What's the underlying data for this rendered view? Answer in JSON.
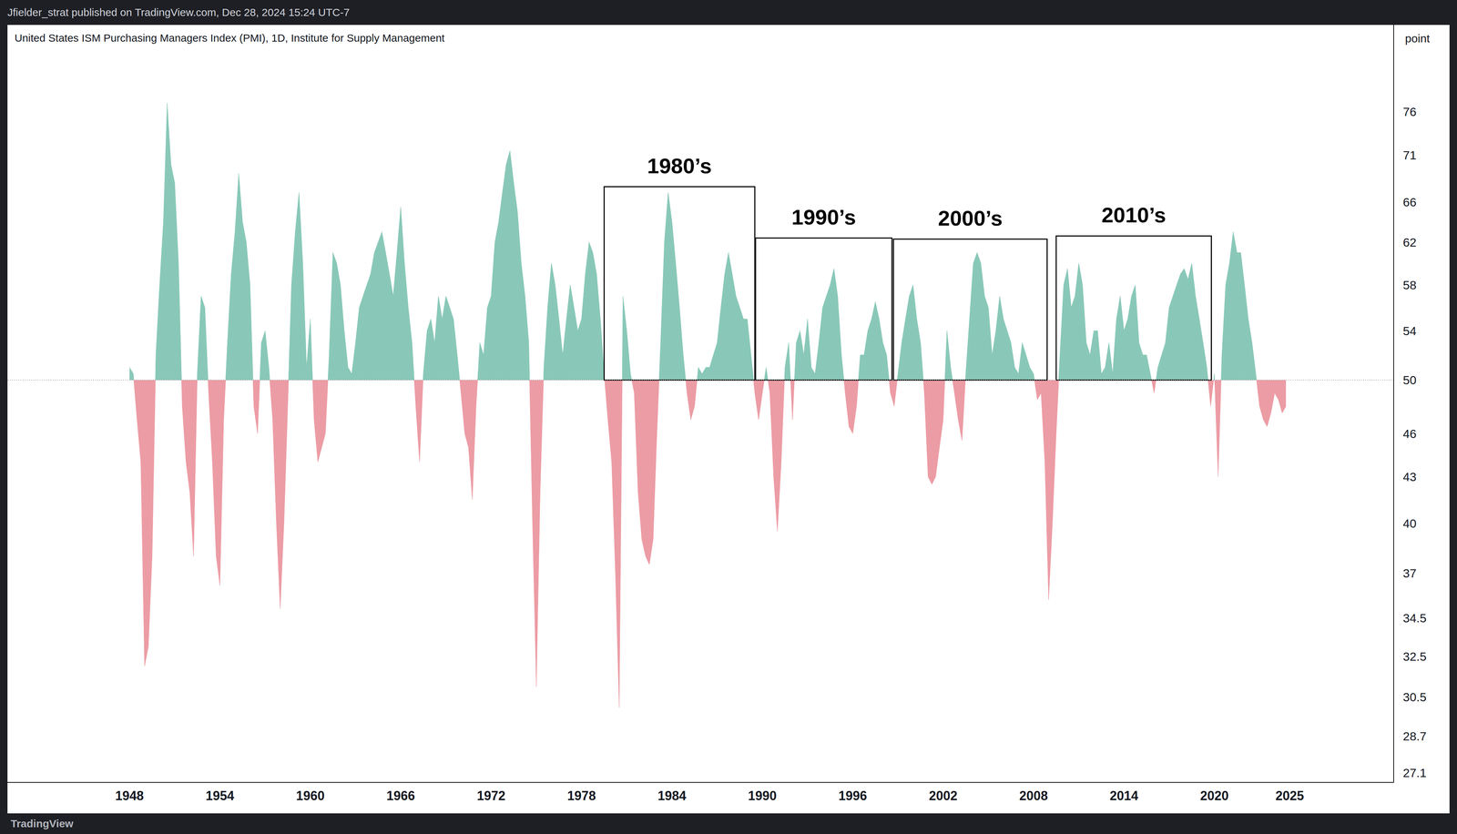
{
  "header": "Jfielder_strat published on TradingView.com, Dec 28, 2024 15:24 UTC-7",
  "footer": "TradingView",
  "chart_data": {
    "type": "area",
    "title": "United States ISM Purchasing Managers Index (PMI), 1D, Institute for Supply Management",
    "y_unit_label": "point",
    "log": "y",
    "grid": false,
    "colors": [
      "#89c8b8",
      "#ec9ca5"
    ],
    "baseline": 50,
    "xlim": [
      1939.9,
      2031.9
    ],
    "xticks": [
      1948,
      1954,
      1960,
      1966,
      1972,
      1978,
      1984,
      1990,
      1996,
      2002,
      2008,
      2014,
      2020,
      2025
    ],
    "ylim": [
      26.7,
      87
    ],
    "yticks": [
      27.1,
      28.7,
      30.5,
      32.5,
      34.5,
      37,
      40,
      43,
      46,
      50,
      54,
      58,
      62,
      66,
      71,
      76
    ],
    "annotations": [
      {
        "text": "1980’s",
        "x": [
          1979.5,
          1989.5
        ],
        "y": [
          50,
          67.6
        ]
      },
      {
        "text": "1990’s",
        "x": [
          1989.55,
          1998.6
        ],
        "y": [
          50,
          62.4
        ]
      },
      {
        "text": "2000’s",
        "x": [
          1998.7,
          2008.9
        ],
        "y": [
          50,
          62.3
        ]
      },
      {
        "text": "2010’s",
        "x": [
          2009.5,
          2019.8
        ],
        "y": [
          50,
          62.6
        ]
      }
    ],
    "x": [
      1948,
      1948.25,
      1948.5,
      1948.75,
      1949,
      1949.25,
      1949.5,
      1949.75,
      1950,
      1950.25,
      1950.5,
      1950.75,
      1951,
      1951.25,
      1951.5,
      1951.75,
      1952,
      1952.25,
      1952.5,
      1952.75,
      1953,
      1953.25,
      1953.5,
      1953.75,
      1954,
      1954.25,
      1954.5,
      1954.75,
      1955,
      1955.25,
      1955.5,
      1955.75,
      1956,
      1956.25,
      1956.5,
      1956.75,
      1957,
      1957.25,
      1957.5,
      1957.75,
      1958,
      1958.25,
      1958.5,
      1958.75,
      1959,
      1959.25,
      1959.5,
      1959.75,
      1960,
      1960.25,
      1960.5,
      1960.75,
      1961,
      1961.25,
      1961.5,
      1961.75,
      1962,
      1962.25,
      1962.5,
      1962.75,
      1963,
      1963.25,
      1963.5,
      1963.75,
      1964,
      1964.25,
      1964.5,
      1964.75,
      1965,
      1965.25,
      1965.5,
      1965.75,
      1966,
      1966.25,
      1966.5,
      1966.75,
      1967,
      1967.25,
      1967.5,
      1967.75,
      1968,
      1968.25,
      1968.5,
      1968.75,
      1969,
      1969.25,
      1969.5,
      1969.75,
      1970,
      1970.25,
      1970.5,
      1970.75,
      1971,
      1971.25,
      1971.5,
      1971.75,
      1972,
      1972.25,
      1972.5,
      1972.75,
      1973,
      1973.25,
      1973.5,
      1973.75,
      1974,
      1974.25,
      1974.5,
      1974.75,
      1975,
      1975.25,
      1975.5,
      1975.75,
      1976,
      1976.25,
      1976.5,
      1976.75,
      1977,
      1977.25,
      1977.5,
      1977.75,
      1978,
      1978.25,
      1978.5,
      1978.75,
      1979,
      1979.25,
      1979.5,
      1979.75,
      1980,
      1980.25,
      1980.5,
      1980.75,
      1981,
      1981.25,
      1981.5,
      1981.75,
      1982,
      1982.25,
      1982.5,
      1982.75,
      1983,
      1983.25,
      1983.5,
      1983.75,
      1984,
      1984.25,
      1984.5,
      1984.75,
      1985,
      1985.25,
      1985.5,
      1985.75,
      1986,
      1986.25,
      1986.5,
      1986.75,
      1987,
      1987.25,
      1987.5,
      1987.75,
      1988,
      1988.25,
      1988.5,
      1988.75,
      1989,
      1989.25,
      1989.5,
      1989.75,
      1990,
      1990.25,
      1990.5,
      1990.75,
      1991,
      1991.25,
      1991.5,
      1991.75,
      1992,
      1992.25,
      1992.5,
      1992.75,
      1993,
      1993.25,
      1993.5,
      1993.75,
      1994,
      1994.25,
      1994.5,
      1994.75,
      1995,
      1995.25,
      1995.5,
      1995.75,
      1996,
      1996.25,
      1996.5,
      1996.75,
      1997,
      1997.25,
      1997.5,
      1997.75,
      1998,
      1998.25,
      1998.5,
      1998.75,
      1999,
      1999.25,
      1999.5,
      1999.75,
      2000,
      2000.25,
      2000.5,
      2000.75,
      2001,
      2001.25,
      2001.5,
      2001.75,
      2002,
      2002.25,
      2002.5,
      2002.75,
      2003,
      2003.25,
      2003.5,
      2003.75,
      2004,
      2004.25,
      2004.5,
      2004.75,
      2005,
      2005.25,
      2005.5,
      2005.75,
      2006,
      2006.25,
      2006.5,
      2006.75,
      2007,
      2007.25,
      2007.5,
      2007.75,
      2008,
      2008.25,
      2008.5,
      2008.75,
      2009,
      2009.25,
      2009.5,
      2009.75,
      2010,
      2010.25,
      2010.5,
      2010.75,
      2011,
      2011.25,
      2011.5,
      2011.75,
      2012,
      2012.25,
      2012.5,
      2012.75,
      2013,
      2013.25,
      2013.5,
      2013.75,
      2014,
      2014.25,
      2014.5,
      2014.75,
      2015,
      2015.25,
      2015.5,
      2015.75,
      2016,
      2016.25,
      2016.5,
      2016.75,
      2017,
      2017.25,
      2017.5,
      2017.75,
      2018,
      2018.25,
      2018.5,
      2018.75,
      2019,
      2019.25,
      2019.5,
      2019.75,
      2020,
      2020.25,
      2020.5,
      2020.75,
      2021,
      2021.25,
      2021.5,
      2021.75,
      2022,
      2022.25,
      2022.5,
      2022.75,
      2023,
      2023.25,
      2023.5,
      2023.75,
      2024,
      2024.25,
      2024.5,
      2024.75
    ],
    "values": [
      51,
      50.5,
      47,
      44,
      32,
      33,
      38,
      52,
      58,
      64,
      77,
      70,
      68,
      60,
      48,
      44,
      42,
      38,
      50.5,
      57,
      56,
      49,
      44,
      38,
      36.3,
      47,
      53,
      59,
      63,
      69,
      64,
      62,
      58,
      48,
      46,
      53,
      54,
      51,
      47,
      40,
      35,
      40,
      48,
      58,
      63,
      67,
      60,
      51,
      55,
      47,
      44,
      45,
      46,
      52,
      61,
      60,
      58,
      54,
      51,
      50.5,
      53,
      56,
      57,
      58,
      59,
      61,
      62,
      63,
      61,
      59,
      57,
      61,
      65.5,
      60,
      56,
      53,
      48,
      44,
      50.5,
      54,
      55,
      53,
      57,
      55,
      57,
      56,
      55,
      52,
      49,
      46,
      45,
      41.5,
      48,
      53,
      52,
      56,
      57,
      62,
      64,
      67,
      70,
      71.5,
      68,
      65,
      60,
      57,
      53,
      40,
      31,
      42,
      51,
      56,
      60,
      58,
      55,
      52,
      55,
      58,
      56,
      54,
      55,
      59,
      62,
      61,
      59,
      55,
      50.5,
      47,
      44,
      37,
      30,
      57,
      54,
      50.5,
      49,
      42,
      39,
      38,
      37.5,
      39,
      46,
      53,
      62,
      67,
      64,
      60,
      56,
      52,
      49,
      47,
      48,
      51,
      50.5,
      51,
      51,
      52,
      53,
      56,
      59,
      61,
      59,
      57,
      56,
      55,
      55,
      52,
      49,
      47,
      49,
      51,
      49,
      43,
      39.5,
      44,
      51,
      53,
      47,
      53,
      54,
      52,
      55,
      51,
      50.5,
      53,
      56,
      57,
      58,
      59.5,
      57,
      52,
      49,
      46.5,
      46,
      48,
      52,
      52,
      54,
      55,
      56.5,
      55,
      53,
      52,
      49,
      48,
      50.5,
      53,
      55,
      57,
      58,
      55,
      53,
      49,
      43,
      42.5,
      43,
      45,
      47,
      54,
      51,
      49,
      47,
      45.5,
      50.5,
      55,
      60,
      61,
      60,
      57,
      56,
      52,
      54,
      57,
      55,
      54,
      53,
      51,
      50.5,
      53,
      52,
      51,
      50.5,
      48.5,
      49,
      44,
      35.5,
      40,
      46,
      52,
      58,
      59.5,
      56,
      57,
      60,
      58,
      53,
      52,
      54,
      54,
      50.5,
      51,
      53,
      50.5,
      55,
      57,
      54,
      55,
      57,
      58,
      53,
      52,
      52,
      50.5,
      49,
      51,
      52,
      53,
      56,
      57,
      58,
      59,
      59.5,
      58.5,
      60,
      57,
      55,
      53,
      51,
      48,
      50.5,
      43,
      52,
      58,
      60,
      63,
      61,
      61,
      58,
      55,
      53,
      50.5,
      48,
      47,
      46.5,
      47.5,
      49,
      48.5,
      47.5,
      48
    ]
  }
}
